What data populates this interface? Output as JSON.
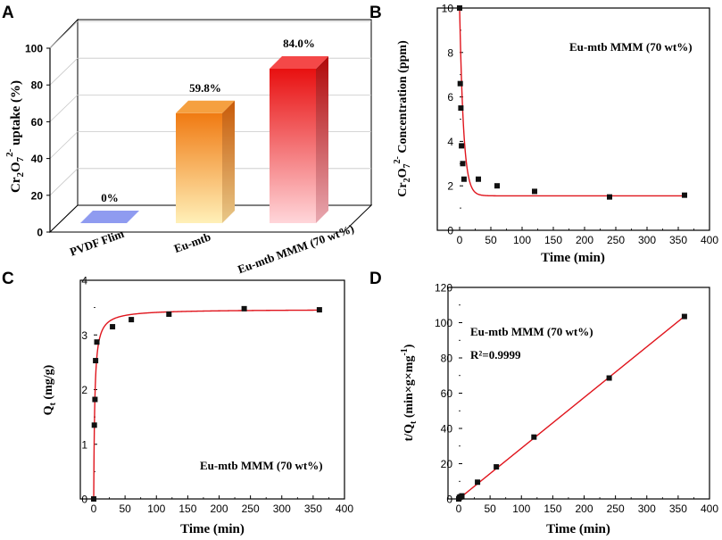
{
  "colors": {
    "fit_line": "#e0141c",
    "marker": "#111111",
    "bar_pvdf": "#8f9bf0",
    "bar_eumtb_top": "#f07a12",
    "bar_eumtb_bottom": "#fff0b8",
    "bar_mmm_top": "#e81010",
    "bar_mmm_bottom": "#ffd6da"
  },
  "chart_data": [
    {
      "panel": "A",
      "type": "bar",
      "title": "",
      "ylabel": "Cr2O72- uptake (%)",
      "xlabel": "",
      "ylim": [
        0,
        100
      ],
      "yticks": [
        "0",
        "20",
        "40",
        "60",
        "80",
        "100"
      ],
      "categories": [
        "PVDF Flim",
        "Eu-mtb",
        "Eu-mtb MMM (70 wt%)"
      ],
      "values": [
        0,
        59.8,
        84.0
      ],
      "data_labels": [
        "0%",
        "59.8%",
        "84.0%"
      ]
    },
    {
      "panel": "B",
      "type": "scatter",
      "legend": "Eu-mtb MMM (70 wt%)",
      "xlabel": "Time (min)",
      "ylabel": "Cr2O72- Concentration (ppm)",
      "xlim": [
        0,
        400
      ],
      "ylim": [
        0,
        10
      ],
      "xticks": [
        "0",
        "50",
        "100",
        "150",
        "200",
        "250",
        "300",
        "350",
        "400"
      ],
      "yticks": [
        "0",
        "2",
        "4",
        "6",
        "8",
        "10"
      ],
      "x": [
        0,
        1,
        2,
        3,
        5,
        7,
        30,
        60,
        120,
        240,
        360
      ],
      "y": [
        10.0,
        6.6,
        5.5,
        3.8,
        3.0,
        2.3,
        2.3,
        2.0,
        1.75,
        1.5,
        1.58
      ],
      "fit": {
        "model": "exponential decay",
        "c0": 10.0,
        "c_inf": 1.55,
        "k": 0.16
      }
    },
    {
      "panel": "C",
      "type": "scatter",
      "legend": "Eu-mtb MMM (70 wt%)",
      "xlabel": "Time (min)",
      "ylabel": "Qt (mg/g)",
      "xlim": [
        0,
        400
      ],
      "ylim": [
        0,
        4
      ],
      "xticks": [
        "0",
        "50",
        "100",
        "150",
        "200",
        "250",
        "300",
        "350",
        "400"
      ],
      "yticks": [
        "0",
        "1",
        "2",
        "3",
        "4"
      ],
      "x": [
        0,
        1,
        2,
        3,
        5,
        30,
        60,
        120,
        240,
        360
      ],
      "y": [
        0,
        1.35,
        1.82,
        2.53,
        2.87,
        3.15,
        3.28,
        3.38,
        3.48,
        3.46
      ],
      "fit": {
        "model": "pseudo-second-order",
        "qe": 3.47,
        "k": 0.17
      }
    },
    {
      "panel": "D",
      "type": "scatter",
      "legend": "Eu-mtb MMM (70 wt%)",
      "annotation": "R2=0.9999",
      "xlabel": "Time (min)",
      "ylabel": "t/Qt (min×g×mg-1)",
      "xlim": [
        0,
        400
      ],
      "ylim": [
        0,
        120
      ],
      "xticks": [
        "0",
        "50",
        "100",
        "150",
        "200",
        "250",
        "300",
        "350",
        "400"
      ],
      "yticks": [
        "0",
        "20",
        "40",
        "60",
        "80",
        "100",
        "120"
      ],
      "x": [
        0,
        1,
        2,
        3,
        5,
        30,
        60,
        120,
        240,
        360
      ],
      "y": [
        0,
        0.74,
        1.1,
        1.19,
        1.74,
        9.5,
        18.2,
        35.1,
        68.6,
        103.5
      ],
      "fit": {
        "model": "linear",
        "slope": 0.2877,
        "intercept": 0.0
      }
    }
  ],
  "panels": {
    "A": {
      "letter": "A"
    },
    "B": {
      "letter": "B",
      "legend": "Eu-mtb MMM (70 wt%)"
    },
    "C": {
      "letter": "C",
      "legend": "Eu-mtb MMM (70 wt%)"
    },
    "D": {
      "letter": "D",
      "legend": "Eu-mtb MMM (70 wt%)",
      "r2": "R²=0.9999"
    }
  }
}
